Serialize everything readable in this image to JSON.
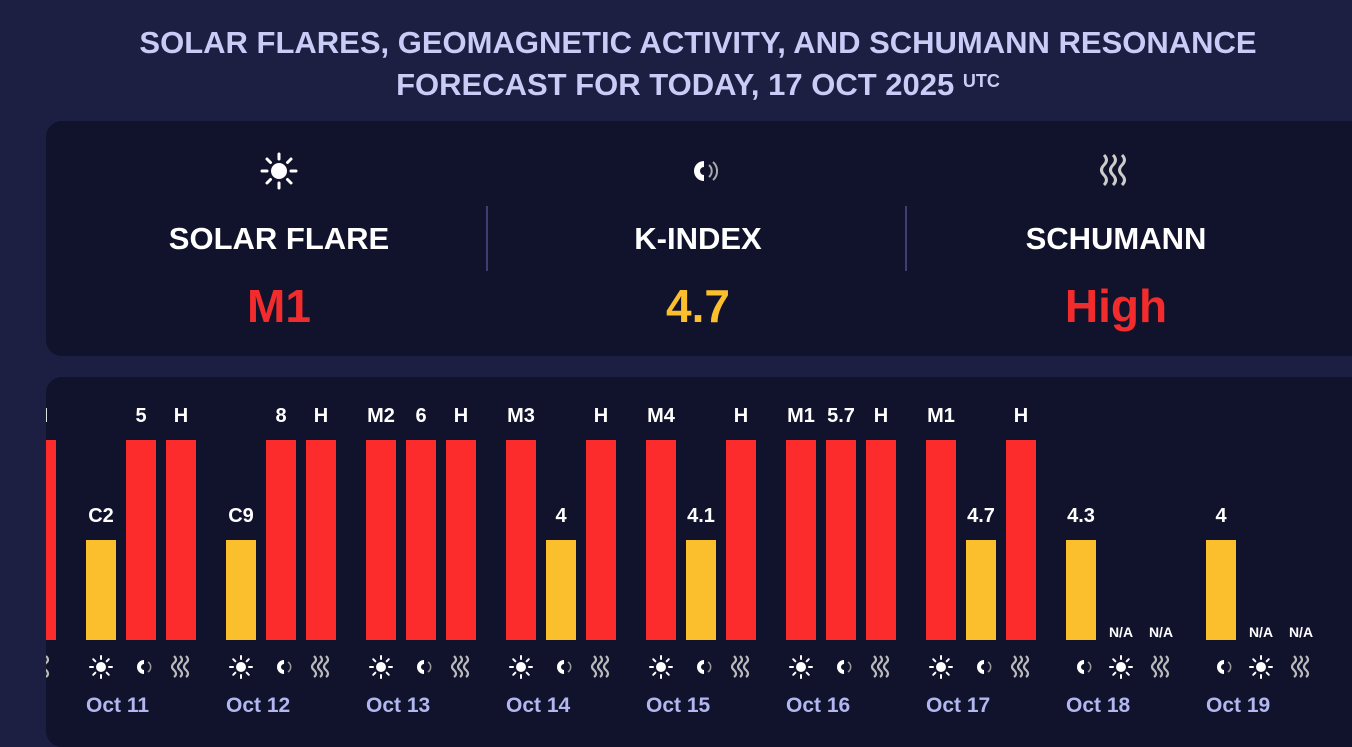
{
  "header": {
    "title_line1": "SOLAR FLARES, GEOMAGNETIC ACTIVITY, AND SCHUMANN RESONANCE",
    "title_line2": "FORECAST FOR TODAY, 17 OCT 2025",
    "tz": "UTC"
  },
  "summary": [
    {
      "icon": "sun-icon",
      "label": "SOLAR FLARE",
      "value": "M1",
      "color": "#f22b2c"
    },
    {
      "icon": "magnet-icon",
      "label": "K-INDEX",
      "value": "4.7",
      "color": "#fbbf2e"
    },
    {
      "icon": "waves-icon",
      "label": "SCHUMANN",
      "value": "High",
      "color": "#f22b2c"
    }
  ],
  "chart_data": {
    "type": "bar",
    "levels": {
      "high": 1.0,
      "moderate": 0.5,
      "na": 0
    },
    "colors": {
      "high": "#fd2c2c",
      "moderate": "#fbbf2e"
    },
    "days": [
      {
        "date": "",
        "bars": [
          {
            "type": "sun",
            "label": "",
            "level": "high"
          },
          {
            "type": "magnet",
            "label": "",
            "level": "high"
          },
          {
            "type": "waves",
            "label": "H",
            "level": "high"
          }
        ]
      },
      {
        "date": "Oct 11",
        "bars": [
          {
            "type": "sun",
            "label": "C2",
            "level": "moderate"
          },
          {
            "type": "magnet",
            "label": "5",
            "level": "high"
          },
          {
            "type": "waves",
            "label": "H",
            "level": "high"
          }
        ]
      },
      {
        "date": "Oct 12",
        "bars": [
          {
            "type": "sun",
            "label": "C9",
            "level": "moderate"
          },
          {
            "type": "magnet",
            "label": "8",
            "level": "high"
          },
          {
            "type": "waves",
            "label": "H",
            "level": "high"
          }
        ]
      },
      {
        "date": "Oct 13",
        "bars": [
          {
            "type": "sun",
            "label": "M2",
            "level": "high"
          },
          {
            "type": "magnet",
            "label": "6",
            "level": "high"
          },
          {
            "type": "waves",
            "label": "H",
            "level": "high"
          }
        ]
      },
      {
        "date": "Oct 14",
        "bars": [
          {
            "type": "sun",
            "label": "M3",
            "level": "high"
          },
          {
            "type": "magnet",
            "label": "4",
            "level": "moderate"
          },
          {
            "type": "waves",
            "label": "H",
            "level": "high"
          }
        ]
      },
      {
        "date": "Oct 15",
        "bars": [
          {
            "type": "sun",
            "label": "M4",
            "level": "high"
          },
          {
            "type": "magnet",
            "label": "4.1",
            "level": "moderate"
          },
          {
            "type": "waves",
            "label": "H",
            "level": "high"
          }
        ]
      },
      {
        "date": "Oct 16",
        "bars": [
          {
            "type": "sun",
            "label": "M1",
            "level": "high"
          },
          {
            "type": "magnet",
            "label": "5.7",
            "level": "high"
          },
          {
            "type": "waves",
            "label": "H",
            "level": "high"
          }
        ]
      },
      {
        "date": "Oct 17",
        "bars": [
          {
            "type": "sun",
            "label": "M1",
            "level": "high"
          },
          {
            "type": "magnet",
            "label": "4.7",
            "level": "moderate"
          },
          {
            "type": "waves",
            "label": "H",
            "level": "high"
          }
        ]
      },
      {
        "date": "Oct 18",
        "bars": [
          {
            "type": "magnet",
            "label": "4.3",
            "level": "moderate"
          },
          {
            "type": "sun",
            "label": "N/A",
            "level": "na"
          },
          {
            "type": "waves",
            "label": "N/A",
            "level": "na"
          }
        ]
      },
      {
        "date": "Oct 19",
        "bars": [
          {
            "type": "magnet",
            "label": "4",
            "level": "moderate"
          },
          {
            "type": "sun",
            "label": "N/A",
            "level": "na"
          },
          {
            "type": "waves",
            "label": "N/A",
            "level": "na"
          }
        ]
      }
    ]
  }
}
